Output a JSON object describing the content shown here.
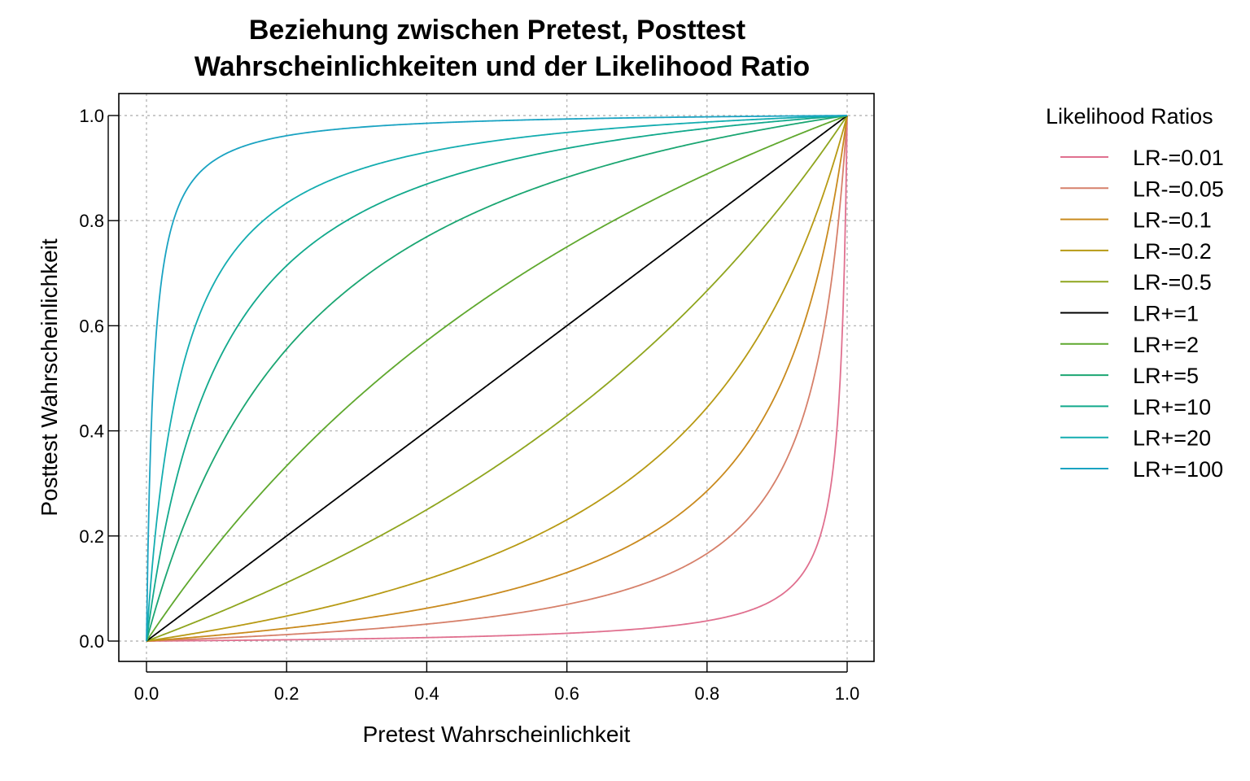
{
  "chart_data": {
    "type": "line",
    "title_lines": [
      "Beziehung zwischen Pretest, Posttest",
      "Wahrscheinlichkeiten und der Likelihood Ratio"
    ],
    "xlabel": "Pretest Wahrscheinlichkeit",
    "ylabel": "Posttest Wahrscheinlichkeit",
    "xlim": [
      0,
      1
    ],
    "ylim": [
      0,
      1
    ],
    "x_ticks": [
      "0.0",
      "0.2",
      "0.4",
      "0.6",
      "0.8",
      "1.0"
    ],
    "y_ticks": [
      "0.0",
      "0.2",
      "0.4",
      "0.6",
      "0.8",
      "1.0"
    ],
    "grid": true,
    "legend_title": "Likelihood Ratios",
    "legend_position": "right",
    "series": [
      {
        "name": "LR-=0.01",
        "lr": 0.01,
        "color": "#E0708F"
      },
      {
        "name": "LR-=0.05",
        "lr": 0.05,
        "color": "#D6806A"
      },
      {
        "name": "LR-=0.1",
        "lr": 0.1,
        "color": "#C98A1E"
      },
      {
        "name": "LR-=0.2",
        "lr": 0.2,
        "color": "#B79A14"
      },
      {
        "name": "LR-=0.5",
        "lr": 0.5,
        "color": "#8FA51E"
      },
      {
        "name": "LR+=1",
        "lr": 1,
        "color": "#000000"
      },
      {
        "name": "LR+=2",
        "lr": 2,
        "color": "#5FA82E"
      },
      {
        "name": "LR+=5",
        "lr": 5,
        "color": "#1BA672"
      },
      {
        "name": "LR+=10",
        "lr": 10,
        "color": "#12A98C"
      },
      {
        "name": "LR+=20",
        "lr": 20,
        "color": "#14ADB0"
      },
      {
        "name": "LR+=100",
        "lr": 100,
        "color": "#1AA3C2"
      }
    ]
  }
}
